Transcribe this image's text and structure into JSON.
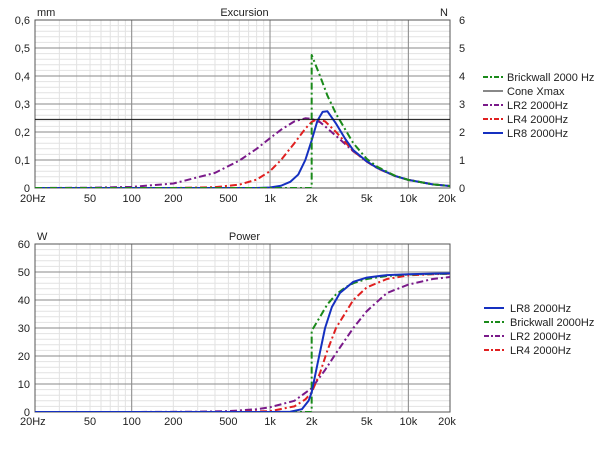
{
  "chart_data": [
    {
      "type": "line",
      "title": "Excursion",
      "x_scale": "log",
      "xlim": [
        20,
        20000
      ],
      "x_ticks": [
        20,
        50,
        100,
        200,
        500,
        1000,
        2000,
        5000,
        10000,
        20000
      ],
      "x_tick_labels": [
        "20Hz",
        "50",
        "100",
        "200",
        "500",
        "1k",
        "2k",
        "5k",
        "10k",
        "20k"
      ],
      "ylabel_left": "mm",
      "ylim_left": [
        0,
        0.6
      ],
      "y_ticks_left": [
        "0",
        "0,1",
        "0,2",
        "0,3",
        "0,4",
        "0,5",
        "0,6"
      ],
      "ylabel_right": "N",
      "ylim_right": [
        0,
        6
      ],
      "y_ticks_right": [
        "0",
        "1",
        "2",
        "3",
        "4",
        "5",
        "6"
      ],
      "grid": true,
      "legend_position": "right",
      "legend": [
        {
          "name": "Brickwall 2000 Hz",
          "color": "#1a8a1a",
          "dash": "dashdot"
        },
        {
          "name": "Cone Xmax",
          "color": "#111111",
          "dash": "solid"
        },
        {
          "name": "LR2 2000Hz",
          "color": "#7a1a8a",
          "dash": "dashdot"
        },
        {
          "name": "LR4 2000Hz",
          "color": "#e02020",
          "dash": "dashdot"
        },
        {
          "name": "LR8 2000Hz",
          "color": "#1530c0",
          "dash": "solid"
        }
      ],
      "series": [
        {
          "name": "LR2 2000Hz",
          "color": "#7a1a8a",
          "dash": "dashdot",
          "x": [
            20,
            50,
            100,
            200,
            400,
            600,
            800,
            1000,
            1200,
            1500,
            1800,
            2000,
            2300,
            2600,
            3000,
            4000,
            5000,
            6000,
            8000,
            10000,
            15000,
            20000
          ],
          "y": [
            0.0,
            0.001,
            0.004,
            0.016,
            0.054,
            0.098,
            0.14,
            0.178,
            0.208,
            0.238,
            0.249,
            0.247,
            0.235,
            0.213,
            0.186,
            0.131,
            0.095,
            0.071,
            0.043,
            0.029,
            0.013,
            0.007
          ]
        },
        {
          "name": "LR4 2000Hz",
          "color": "#e02020",
          "dash": "dashdot",
          "x": [
            20,
            200,
            400,
            600,
            800,
            1000,
            1200,
            1500,
            1800,
            2000,
            2200,
            2500,
            3000,
            4000,
            5000,
            6000,
            8000,
            10000,
            15000,
            20000
          ],
          "y": [
            0.0,
            0.0,
            0.003,
            0.012,
            0.03,
            0.06,
            0.1,
            0.16,
            0.212,
            0.236,
            0.246,
            0.238,
            0.2,
            0.132,
            0.094,
            0.07,
            0.043,
            0.029,
            0.013,
            0.007
          ]
        },
        {
          "name": "LR8 2000Hz",
          "color": "#1530c0",
          "dash": "solid",
          "x": [
            20,
            800,
            1000,
            1200,
            1400,
            1600,
            1800,
            2000,
            2200,
            2400,
            2600,
            3000,
            3500,
            4000,
            5000,
            6000,
            8000,
            10000,
            15000,
            20000
          ],
          "y": [
            0.0,
            0.0,
            0.002,
            0.008,
            0.022,
            0.048,
            0.1,
            0.17,
            0.24,
            0.272,
            0.274,
            0.23,
            0.175,
            0.135,
            0.095,
            0.071,
            0.043,
            0.029,
            0.013,
            0.007
          ]
        },
        {
          "name": "Brickwall 2000 Hz",
          "color": "#1a8a1a",
          "dash": "dashdot",
          "x": [
            20,
            1990,
            2000,
            2000,
            2300,
            2600,
            3000,
            4000,
            5000,
            6000,
            8000,
            10000,
            15000,
            20000
          ],
          "y": [
            0.0,
            0.0,
            0.0,
            0.475,
            0.4,
            0.33,
            0.265,
            0.16,
            0.104,
            0.075,
            0.044,
            0.029,
            0.013,
            0.007
          ]
        },
        {
          "name": "Cone Xmax",
          "color": "#111111",
          "dash": "solid",
          "x": [
            20,
            20000
          ],
          "y": [
            0.245,
            0.245
          ]
        }
      ]
    },
    {
      "type": "line",
      "title": "Power",
      "x_scale": "log",
      "xlim": [
        20,
        20000
      ],
      "x_ticks": [
        20,
        50,
        100,
        200,
        500,
        1000,
        2000,
        5000,
        10000,
        20000
      ],
      "x_tick_labels": [
        "20Hz",
        "50",
        "100",
        "200",
        "500",
        "1k",
        "2k",
        "5k",
        "10k",
        "20k"
      ],
      "ylabel": "W",
      "ylim": [
        0,
        60
      ],
      "y_ticks": [
        "0",
        "10",
        "20",
        "30",
        "40",
        "50",
        "60"
      ],
      "grid": true,
      "legend_position": "right",
      "legend": [
        {
          "name": "LR8 2000Hz",
          "color": "#1530c0",
          "dash": "solid"
        },
        {
          "name": "Brickwall 2000Hz",
          "color": "#1a8a1a",
          "dash": "dashdot"
        },
        {
          "name": "LR2 2000Hz",
          "color": "#7a1a8a",
          "dash": "dashdot"
        },
        {
          "name": "LR4 2000Hz",
          "color": "#e02020",
          "dash": "dashdot"
        }
      ],
      "series": [
        {
          "name": "LR2 2000Hz",
          "color": "#7a1a8a",
          "dash": "dashdot",
          "x": [
            20,
            100,
            300,
            500,
            800,
            1000,
            1500,
            2000,
            2500,
            3000,
            4000,
            5000,
            7000,
            10000,
            15000,
            20000
          ],
          "y": [
            0.0,
            0.0,
            0.1,
            0.3,
            1.0,
            1.7,
            4.0,
            8.5,
            15.0,
            21.0,
            30.0,
            36.0,
            42.5,
            45.5,
            47.5,
            48.2
          ]
        },
        {
          "name": "LR4 2000Hz",
          "color": "#e02020",
          "dash": "dashdot",
          "x": [
            20,
            500,
            1000,
            1500,
            1800,
            2000,
            2300,
            2600,
            3000,
            4000,
            5000,
            7000,
            10000,
            15000,
            20000
          ],
          "y": [
            0.0,
            0.0,
            0.3,
            2.0,
            4.5,
            7.0,
            14.0,
            22.0,
            30.0,
            40.0,
            44.5,
            47.5,
            48.8,
            49.2,
            49.4
          ]
        },
        {
          "name": "Brickwall 2000Hz",
          "color": "#1a8a1a",
          "dash": "dashdot",
          "x": [
            20,
            1990,
            2000,
            2000,
            2300,
            2600,
            3000,
            3500,
            4000,
            5000,
            7000,
            10000,
            15000,
            20000
          ],
          "y": [
            0.0,
            0.0,
            0.0,
            29.0,
            34.0,
            38.5,
            42.0,
            44.5,
            46.0,
            47.5,
            48.6,
            49.1,
            49.3,
            49.4
          ]
        },
        {
          "name": "LR8 2000Hz",
          "color": "#1530c0",
          "dash": "solid",
          "x": [
            20,
            1000,
            1400,
            1700,
            1900,
            2000,
            2200,
            2500,
            2800,
            3200,
            4000,
            5000,
            7000,
            10000,
            15000,
            20000
          ],
          "y": [
            0.0,
            0.0,
            0.1,
            1.0,
            4.0,
            7.0,
            17.0,
            30.0,
            37.5,
            42.5,
            46.5,
            48.0,
            48.9,
            49.2,
            49.4,
            49.5
          ]
        }
      ]
    }
  ]
}
